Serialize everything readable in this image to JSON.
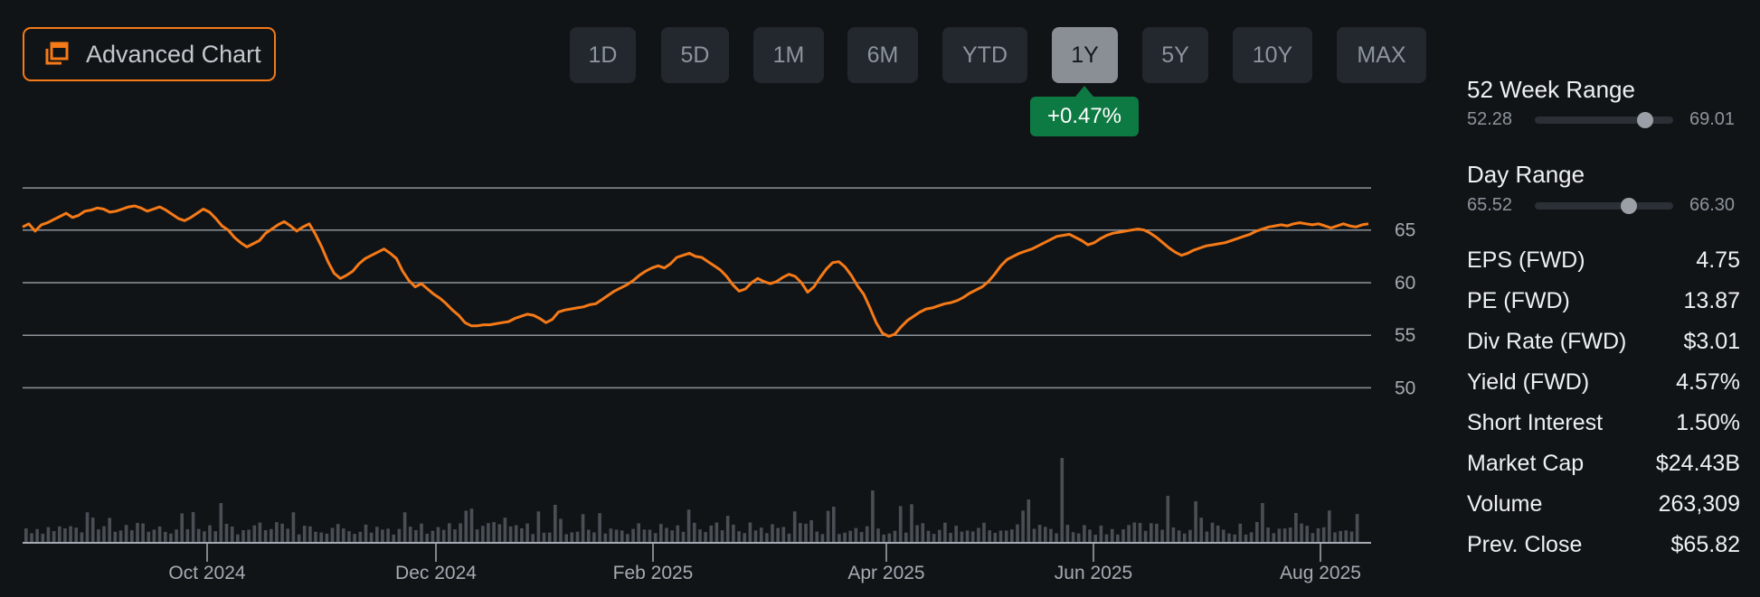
{
  "toolbar": {
    "advanced_chart_label": "Advanced Chart",
    "ranges": [
      "1D",
      "5D",
      "1M",
      "6M",
      "YTD",
      "1Y",
      "5Y",
      "10Y",
      "MAX"
    ],
    "active_range": "1Y",
    "change_badge": "+0.47%"
  },
  "colors": {
    "line": "#f67a17",
    "accent_border": "#f67a17",
    "positive": "#0e7a43",
    "volume": "#4a4f55",
    "grid": "#8d9399"
  },
  "stats": {
    "week52": {
      "label": "52 Week Range",
      "low": "52.28",
      "high": "69.01",
      "position": 0.8
    },
    "day": {
      "label": "Day Range",
      "low": "65.52",
      "high": "66.30",
      "position": 0.68
    },
    "rows": [
      {
        "label": "EPS (FWD)",
        "value": "4.75"
      },
      {
        "label": "PE (FWD)",
        "value": "13.87"
      },
      {
        "label": "Div Rate (FWD)",
        "value": "$3.01"
      },
      {
        "label": "Yield (FWD)",
        "value": "4.57%"
      },
      {
        "label": "Short Interest",
        "value": "1.50%"
      },
      {
        "label": "Market Cap",
        "value": "$24.43B"
      },
      {
        "label": "Volume",
        "value": "263,309"
      },
      {
        "label": "Prev. Close",
        "value": "$65.82"
      }
    ]
  },
  "chart_data": {
    "type": "line",
    "y_ticks": [
      "65",
      "60",
      "55",
      "50"
    ],
    "x_ticks": [
      "Oct 2024",
      "Dec 2024",
      "Feb 2025",
      "Apr 2025",
      "Jun 2025",
      "Aug 2025"
    ],
    "ylim": [
      45.4,
      69.1
    ],
    "grid": true,
    "series": [
      {
        "values": [
          65.3,
          65.6,
          64.9,
          65.5,
          65.7,
          66.0,
          66.3,
          66.6,
          66.2,
          66.4,
          66.8,
          66.9,
          67.1,
          67.0,
          66.7,
          66.8,
          67.0,
          67.2,
          67.3,
          67.1,
          66.8,
          67.0,
          67.2,
          66.9,
          66.5,
          66.1,
          65.9,
          66.2,
          66.6,
          67.0,
          66.7,
          66.1,
          65.4,
          65.0,
          64.3,
          63.8,
          63.4,
          63.7,
          64.0,
          64.7,
          65.1,
          65.5,
          65.8,
          65.4,
          64.9,
          65.3,
          65.6,
          64.6,
          63.4,
          62.0,
          60.9,
          60.4,
          60.7,
          61.1,
          61.8,
          62.3,
          62.6,
          62.9,
          63.2,
          62.8,
          62.3,
          61.1,
          60.2,
          59.6,
          59.9,
          59.4,
          58.9,
          58.5,
          58.0,
          57.4,
          56.9,
          56.2,
          55.9,
          55.9,
          56.0,
          56.0,
          56.1,
          56.2,
          56.3,
          56.6,
          56.8,
          57.0,
          56.9,
          56.6,
          56.2,
          56.5,
          57.2,
          57.4,
          57.5,
          57.6,
          57.7,
          57.9,
          58.0,
          58.4,
          58.8,
          59.2,
          59.5,
          59.8,
          60.2,
          60.7,
          61.1,
          61.4,
          61.6,
          61.4,
          61.8,
          62.4,
          62.6,
          62.8,
          62.5,
          62.4,
          62.0,
          61.6,
          61.2,
          60.6,
          59.8,
          59.2,
          59.4,
          60.0,
          60.4,
          60.1,
          59.9,
          60.1,
          60.5,
          60.8,
          60.6,
          60.0,
          59.1,
          59.6,
          60.5,
          61.3,
          61.9,
          62.0,
          61.5,
          60.7,
          59.7,
          58.9,
          57.6,
          56.2,
          55.2,
          54.9,
          55.1,
          55.8,
          56.4,
          56.8,
          57.2,
          57.5,
          57.6,
          57.8,
          58.0,
          58.1,
          58.3,
          58.6,
          59.0,
          59.3,
          59.6,
          60.1,
          60.8,
          61.6,
          62.2,
          62.5,
          62.8,
          63.0,
          63.2,
          63.5,
          63.8,
          64.1,
          64.4,
          64.5,
          64.6,
          64.3,
          64.0,
          63.6,
          63.8,
          64.2,
          64.5,
          64.7,
          64.8,
          64.9,
          65.0,
          65.1,
          65.0,
          64.7,
          64.3,
          63.8,
          63.3,
          62.9,
          62.6,
          62.8,
          63.1,
          63.3,
          63.5,
          63.6,
          63.7,
          63.8,
          64.0,
          64.2,
          64.4,
          64.6,
          64.9,
          65.1,
          65.3,
          65.4,
          65.5,
          65.4,
          65.6,
          65.7,
          65.6,
          65.5,
          65.6,
          65.4,
          65.2,
          65.4,
          65.6,
          65.4,
          65.3,
          65.5,
          65.6
        ]
      }
    ]
  }
}
